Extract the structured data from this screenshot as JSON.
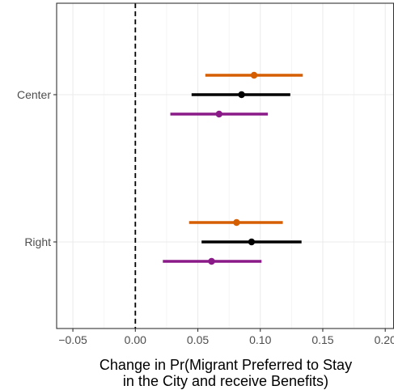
{
  "chart_data": {
    "type": "scatter",
    "subtype": "coefficient-plot-with-confidence-intervals",
    "orientation": "horizontal",
    "xlabel_lines": [
      "Change in Pr(Migrant Preferred to Stay",
      "in the City and receive Benefits)"
    ],
    "ylabel": "",
    "xlim": [
      -0.063,
      0.207
    ],
    "x_ticks": [
      -0.05,
      0.0,
      0.05,
      0.1,
      0.15,
      0.2
    ],
    "x_tick_labels": [
      "−0.05",
      "0.00",
      "0.05",
      "0.10",
      "0.15",
      "0.20"
    ],
    "categories": [
      "Center",
      "Right"
    ],
    "reference_line": {
      "x": 0,
      "style": "dashed",
      "color": "#000000"
    },
    "grid": true,
    "legend": "none",
    "series": [
      {
        "color": "#d55e00",
        "offset": 1,
        "points": [
          {
            "category": "Center",
            "estimate": 0.095,
            "lower": 0.056,
            "upper": 0.134
          },
          {
            "category": "Right",
            "estimate": 0.081,
            "lower": 0.043,
            "upper": 0.118
          }
        ]
      },
      {
        "color": "#000000",
        "offset": 0,
        "points": [
          {
            "category": "Center",
            "estimate": 0.085,
            "lower": 0.045,
            "upper": 0.124
          },
          {
            "category": "Right",
            "estimate": 0.093,
            "lower": 0.053,
            "upper": 0.133
          }
        ]
      },
      {
        "color": "#8b1a89",
        "offset": -1,
        "points": [
          {
            "category": "Center",
            "estimate": 0.067,
            "lower": 0.028,
            "upper": 0.106
          },
          {
            "category": "Right",
            "estimate": 0.061,
            "lower": 0.022,
            "upper": 0.101
          }
        ]
      }
    ]
  }
}
